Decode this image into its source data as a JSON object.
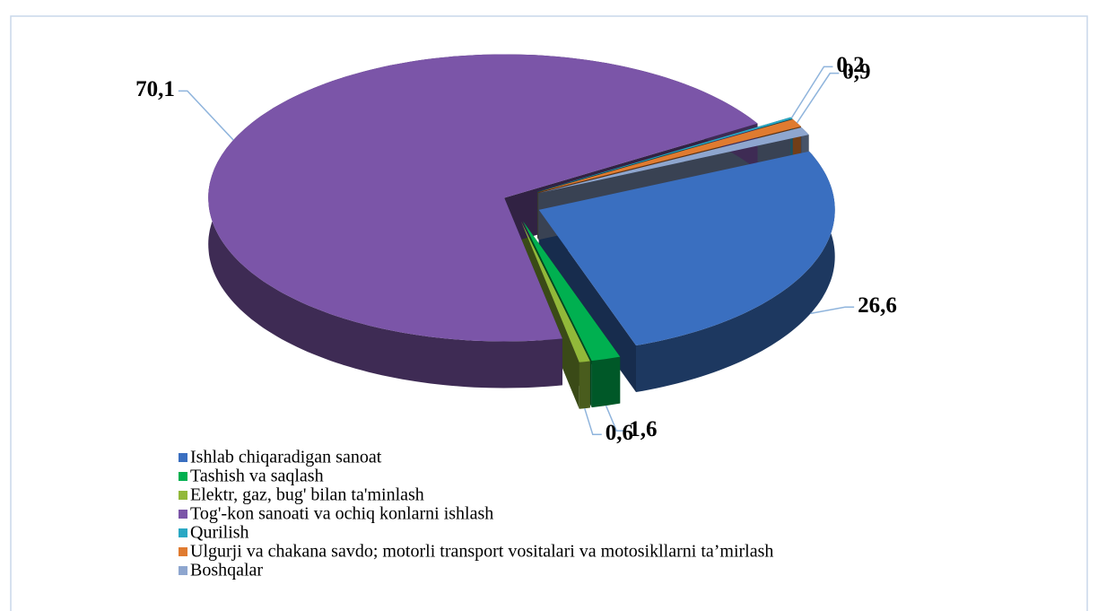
{
  "chart_data": {
    "type": "pie",
    "categories": [
      "Ishlab chiqaradigan sanoat",
      "Tashish va saqlash",
      "Elektr, gaz, bug' bilan ta'minlash",
      "Tog'-kon sanoati va ochiq konlarni ishlash",
      "Qurilish",
      "Ulgurji va chakana savdo;  motorli transport vositalari va  motosikllarni ta’mirlash",
      "Boshqalar"
    ],
    "values": [
      26.6,
      1.6,
      0.6,
      70.1,
      0.2,
      0.9,
      0.9
    ],
    "value_labels": [
      "26,6",
      "1,6",
      "0,6",
      "70,1",
      "0,2",
      "0,9",
      null
    ],
    "colors": [
      "#3a6fc0",
      "#00b050",
      "#92b83a",
      "#7b55a8",
      "#2aa8c4",
      "#e07b30",
      "#8ea6cf"
    ],
    "legend": "bottom"
  }
}
